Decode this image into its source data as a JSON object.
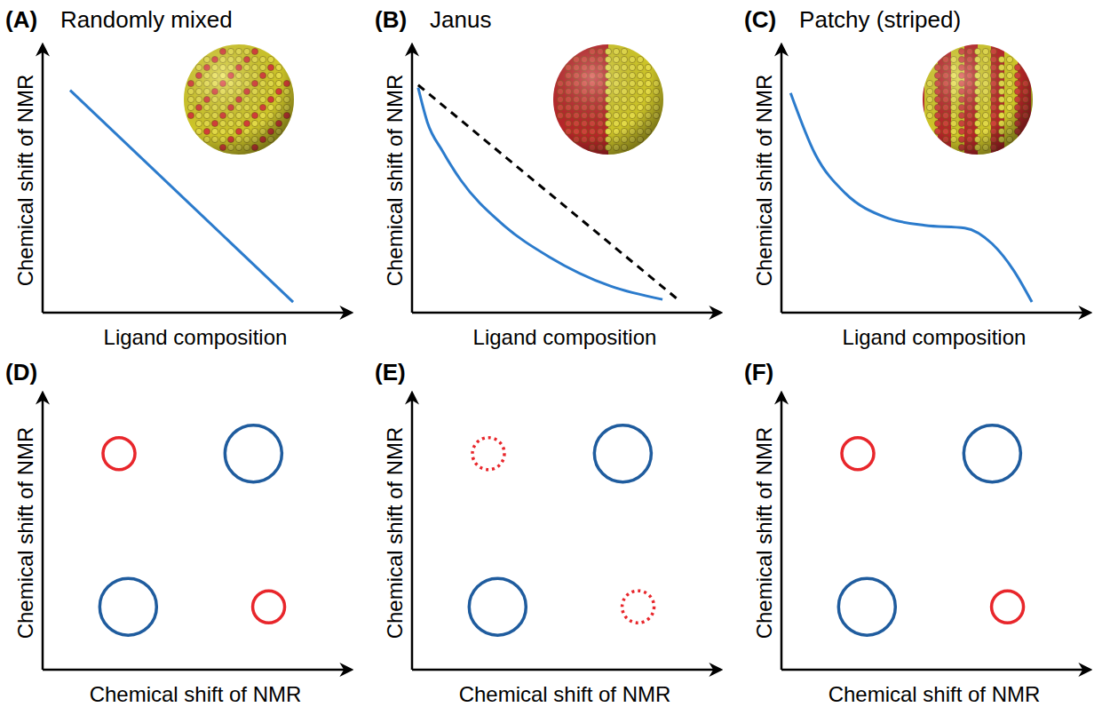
{
  "chart_data": [
    {
      "type": "line",
      "panel_label": "(A)",
      "title": "Randomly mixed",
      "x_label": "Ligand composition",
      "y_label": "Chemical shift of NMR",
      "xlim": [
        0,
        10
      ],
      "ylim": [
        0,
        10
      ],
      "tick_labels": false,
      "series": [
        {
          "color": "#2b7bcc",
          "line_style": "solid",
          "x": [
            0.9,
            8.2
          ],
          "values": [
            8.4,
            0.4
          ]
        }
      ]
    },
    {
      "type": "line",
      "panel_label": "(B)",
      "title": "Janus",
      "x_label": "Ligand composition",
      "y_label": "Chemical shift of NMR",
      "xlim": [
        0,
        10
      ],
      "ylim": [
        0,
        10
      ],
      "tick_labels": false,
      "series": [
        {
          "color": "#2b7bcc",
          "line_style": "solid",
          "x": [
            0.2,
            0.5,
            1.0,
            1.6,
            2.9,
            4.5,
            6.5,
            8.2
          ],
          "values": [
            8.5,
            7.2,
            6.1,
            5.0,
            3.4,
            2.1,
            1.0,
            0.5
          ]
        },
        {
          "color": "#000000",
          "line_style": "dashed",
          "x": [
            0.2,
            8.7
          ],
          "values": [
            8.6,
            0.5
          ]
        }
      ]
    },
    {
      "type": "line",
      "panel_label": "(C)",
      "title": "Patchy (striped)",
      "x_label": "Ligand composition",
      "y_label": "Chemical shift of NMR",
      "xlim": [
        0,
        10
      ],
      "ylim": [
        0,
        10
      ],
      "tick_labels": false,
      "series": [
        {
          "color": "#2b7bcc",
          "line_style": "solid",
          "x": [
            0.3,
            1.1,
            2.1,
            3.4,
            4.7,
            6.0,
            6.9,
            7.6,
            8.2
          ],
          "values": [
            8.3,
            6.0,
            4.5,
            3.6,
            3.3,
            3.2,
            2.6,
            1.6,
            0.4
          ]
        }
      ]
    },
    {
      "type": "scatter",
      "panel_label": "(D)",
      "x_label": "Chemical shift of NMR",
      "y_label": "Chemical shift of NMR",
      "xlim": [
        0,
        10
      ],
      "ylim": [
        0,
        10
      ],
      "tick_labels": false,
      "series": [
        {
          "color": "#1f5c9e",
          "marker": "circle",
          "line_style": "solid",
          "x": [
            6.9,
            2.8
          ],
          "y": [
            7.9,
            2.3
          ],
          "sizes": [
            32,
            32
          ]
        },
        {
          "color": "#e8262b",
          "marker": "circle",
          "line_style": "solid",
          "x": [
            2.5,
            7.4
          ],
          "y": [
            7.9,
            2.3
          ],
          "sizes": [
            18,
            18
          ]
        }
      ]
    },
    {
      "type": "scatter",
      "panel_label": "(E)",
      "x_label": "Chemical shift of NMR",
      "y_label": "Chemical shift of NMR",
      "xlim": [
        0,
        10
      ],
      "ylim": [
        0,
        10
      ],
      "tick_labels": false,
      "series": [
        {
          "color": "#1f5c9e",
          "marker": "circle",
          "line_style": "solid",
          "x": [
            6.9,
            2.8
          ],
          "y": [
            7.9,
            2.3
          ],
          "sizes": [
            32,
            32
          ]
        },
        {
          "color": "#e8262b",
          "marker": "circle",
          "line_style": "dotted",
          "x": [
            2.5,
            7.4
          ],
          "y": [
            7.9,
            2.3
          ],
          "sizes": [
            18,
            18
          ]
        }
      ]
    },
    {
      "type": "scatter",
      "panel_label": "(F)",
      "x_label": "Chemical shift of NMR",
      "y_label": "Chemical shift of NMR",
      "xlim": [
        0,
        10
      ],
      "ylim": [
        0,
        10
      ],
      "tick_labels": false,
      "series": [
        {
          "color": "#1f5c9e",
          "marker": "circle",
          "line_style": "solid",
          "x": [
            6.9,
            2.8
          ],
          "y": [
            7.9,
            2.3
          ],
          "sizes": [
            32,
            32
          ]
        },
        {
          "color": "#e8262b",
          "marker": "circle",
          "line_style": "solid",
          "x": [
            2.5,
            7.4
          ],
          "y": [
            7.9,
            2.3
          ],
          "sizes": [
            18,
            18
          ]
        }
      ]
    }
  ]
}
